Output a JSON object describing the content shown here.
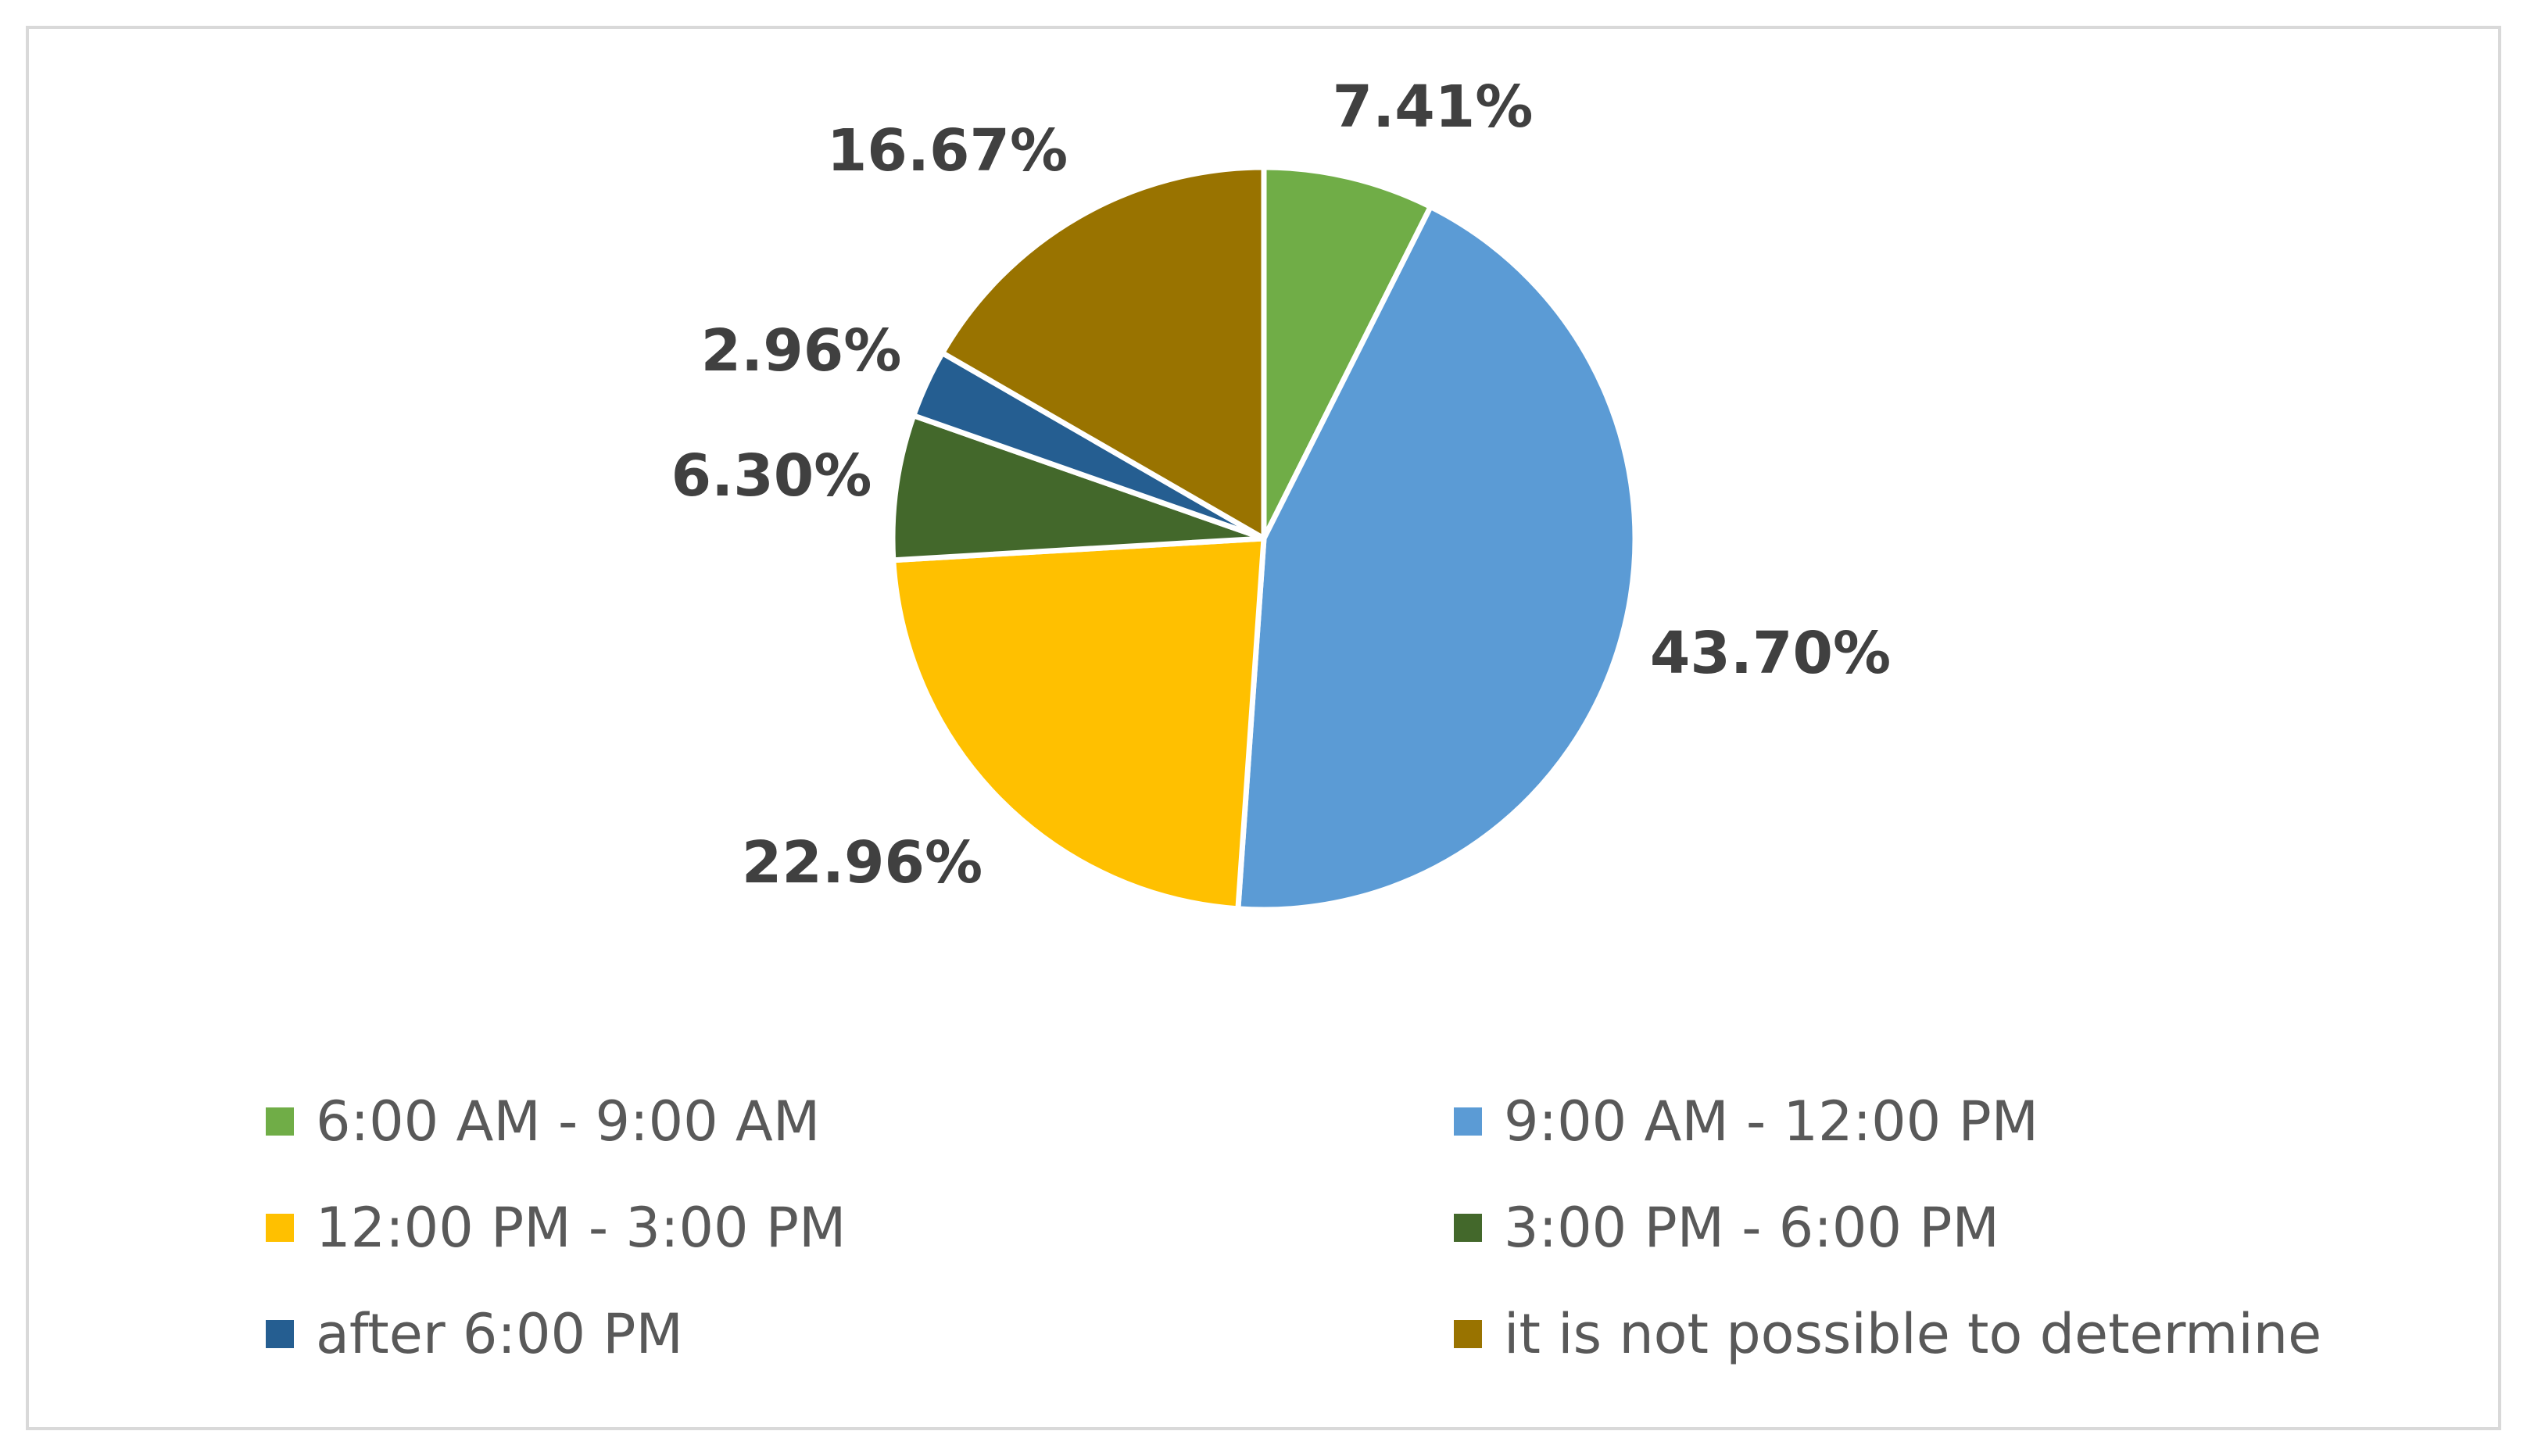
{
  "chart_data": {
    "type": "pie",
    "title": "",
    "categories": [
      "6:00 AM - 9:00 AM",
      "9:00 AM - 12:00 PM",
      "12:00 PM - 3:00 PM",
      "3:00 PM - 6:00 PM",
      "after 6:00 PM",
      "it is not possible to determine"
    ],
    "values": [
      7.41,
      43.7,
      22.96,
      6.3,
      2.96,
      16.67
    ],
    "data_labels": [
      "7.41%",
      "43.70%",
      "22.96%",
      "6.30%",
      "2.96%",
      "16.67%"
    ],
    "colors": [
      "#70ad47",
      "#5b9bd5",
      "#ffc000",
      "#43682b",
      "#255e91",
      "#997300"
    ],
    "start_angle": "12 o'clock",
    "direction": "clockwise",
    "legend_position": "bottom",
    "legend_columns": 2
  }
}
